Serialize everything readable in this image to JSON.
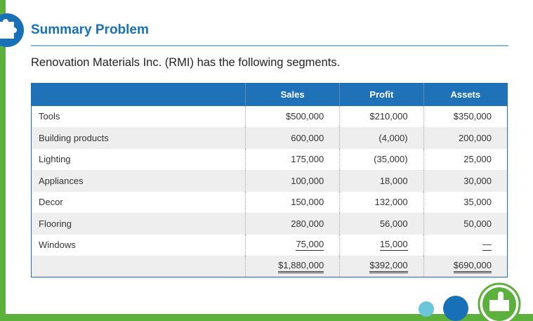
{
  "slide": {
    "title": "Summary Problem",
    "intro": "Renovation Materials Inc. (RMI) has the following segments."
  },
  "table": {
    "headers": {
      "name": "",
      "sales": "Sales",
      "profit": "Profit",
      "assets": "Assets"
    },
    "rows": [
      {
        "name": "Tools",
        "sales": "$500,000",
        "profit": "$210,000",
        "assets": "$350,000"
      },
      {
        "name": "Building products",
        "sales": "600,000",
        "profit": "(4,000)",
        "assets": "200,000"
      },
      {
        "name": "Lighting",
        "sales": "175,000",
        "profit": "(35,000)",
        "assets": "25,000"
      },
      {
        "name": "Appliances",
        "sales": "100,000",
        "profit": "18,000",
        "assets": "30,000"
      },
      {
        "name": "Decor",
        "sales": "150,000",
        "profit": "132,000",
        "assets": "35,000"
      },
      {
        "name": "Flooring",
        "sales": "280,000",
        "profit": "56,000",
        "assets": "50,000"
      },
      {
        "name": "Windows",
        "sales": "75,000",
        "profit": "15,000",
        "assets": "—"
      }
    ],
    "total": {
      "name": "",
      "sales": "$1,880,000",
      "profit": "$392,000",
      "assets": "$690,000"
    }
  },
  "colors": {
    "accent_blue": "#1f72b8",
    "accent_green": "#5cb13c",
    "dot_light": "#6cc5d8",
    "dot_mid": "#1770b8"
  },
  "icons": {
    "title": "puzzle-piece-icon",
    "nav": "pointing-hand-icon"
  }
}
